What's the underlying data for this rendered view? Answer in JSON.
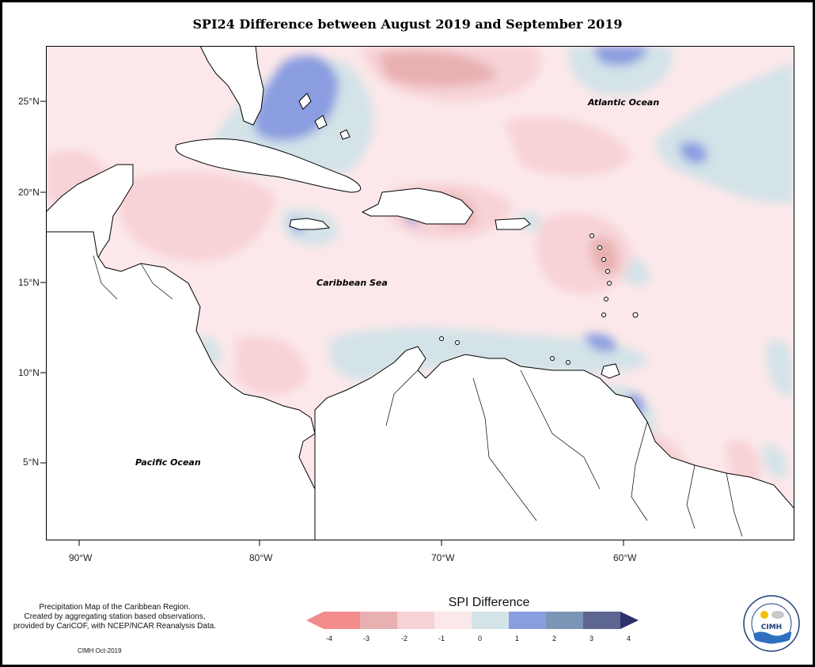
{
  "title": "SPI24 Difference between August 2019 and September 2019",
  "map": {
    "labels": {
      "atlantic": "Atlantic Ocean",
      "caribbean": "Caribbean Sea",
      "pacific": "Pacific Ocean"
    },
    "lat_ticks": [
      "25°N",
      "20°N",
      "15°N",
      "10°N",
      "5°N"
    ],
    "lon_ticks": [
      "90°W",
      "80°W",
      "70°W",
      "60°W"
    ],
    "colors": {
      "neg4": "#f28b8b",
      "neg3": "#e8b0b0",
      "neg2": "#f7d2d6",
      "neg1": "#fce8ea",
      "zero": "#d3e3e8",
      "pos1": "#8a9de0",
      "pos2": "#7b95b6",
      "pos3": "#5d6690",
      "pos4": "#2f306e"
    }
  },
  "legend": {
    "title": "SPI Difference",
    "ticks": [
      "-4",
      "-3",
      "-2",
      "-1",
      "0",
      "1",
      "2",
      "3",
      "4"
    ]
  },
  "footer": {
    "line1": "Precipitation Map of the Caribbean Region.",
    "line2": "Created by aggregating station based observations,",
    "line3": "provided by CariCOF, with NCEP/NCAR Reanalysis Data.",
    "date": "CIMH Oct-2019"
  },
  "logo": {
    "text": "CIMH"
  }
}
